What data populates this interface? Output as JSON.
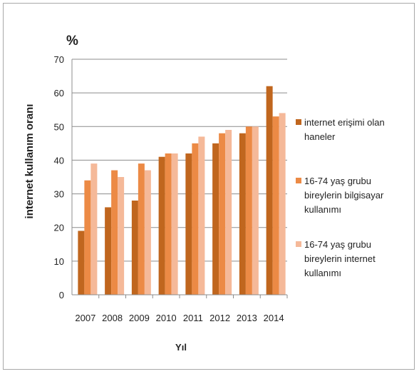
{
  "chart_data": {
    "type": "bar",
    "unit_label": "%",
    "ylabel": "internet kullanım oranı",
    "xlabel": "Yıl",
    "categories": [
      "2007",
      "2008",
      "2009",
      "2010",
      "2011",
      "2012",
      "2013",
      "2014"
    ],
    "series": [
      {
        "name": "internet erişimi olan haneler",
        "legend_lines": [
          "internet erişimi olan",
          "haneler"
        ],
        "color": "#c0661e",
        "values": [
          19,
          26,
          28,
          41,
          42,
          45,
          48,
          62
        ]
      },
      {
        "name": "16-74 yaş grubu bireylerin bilgisayar kullanımı",
        "legend_lines": [
          "16-74 yaş grubu",
          "bireylerin bilgisayar",
          "kullanımı"
        ],
        "color": "#ec8a45",
        "values": [
          34,
          37,
          39,
          42,
          45,
          48,
          50,
          53
        ]
      },
      {
        "name": "16-74 yaş grubu bireylerin internet kullanımı",
        "legend_lines": [
          "16-74 yaş grubu",
          "bireylerin internet",
          "kullanımı"
        ],
        "color": "#f5b999",
        "values": [
          39,
          35,
          37,
          42,
          47,
          49,
          50,
          54
        ]
      }
    ],
    "ylim": [
      0,
      70
    ],
    "yticks": [
      "0",
      "10",
      "20",
      "30",
      "40",
      "50",
      "60",
      "70"
    ],
    "grid": true,
    "legend_position": "right"
  }
}
